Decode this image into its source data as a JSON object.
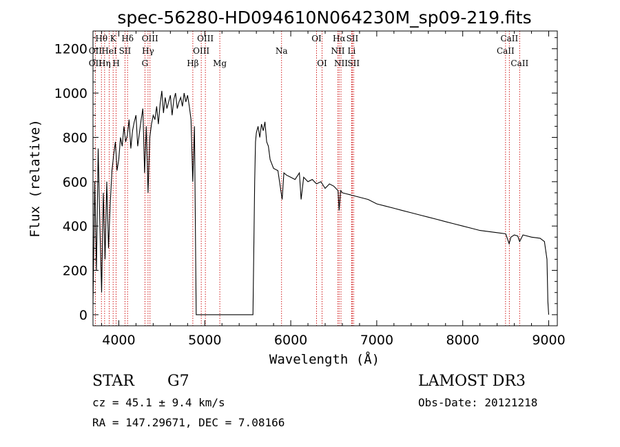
{
  "chart_data": {
    "type": "line",
    "title": "spec-56280-HD094610N064230M_sp09-219.fits",
    "xlabel": "Wavelength (Å)",
    "ylabel": "Flux (relative)",
    "xlim": [
      3700,
      9100
    ],
    "ylim": [
      -50,
      1280
    ],
    "x_ticks": [
      4000,
      5000,
      6000,
      7000,
      8000,
      9000
    ],
    "y_ticks": [
      0,
      200,
      400,
      600,
      800,
      1000,
      1200
    ],
    "series": [
      {
        "name": "flux",
        "x": [
          3700,
          3720,
          3740,
          3760,
          3780,
          3800,
          3820,
          3840,
          3860,
          3880,
          3900,
          3920,
          3940,
          3960,
          3980,
          4000,
          4020,
          4040,
          4060,
          4080,
          4100,
          4120,
          4140,
          4160,
          4180,
          4200,
          4220,
          4240,
          4260,
          4280,
          4300,
          4320,
          4340,
          4360,
          4380,
          4400,
          4420,
          4440,
          4460,
          4480,
          4500,
          4520,
          4540,
          4560,
          4580,
          4600,
          4620,
          4640,
          4660,
          4680,
          4700,
          4720,
          4740,
          4760,
          4780,
          4800,
          4820,
          4840,
          4860,
          4880,
          4900,
          4920,
          5000,
          5200,
          5400,
          5560,
          5580,
          5590,
          5600,
          5620,
          5640,
          5660,
          5680,
          5700,
          5720,
          5740,
          5760,
          5780,
          5800,
          5850,
          5900,
          5920,
          5950,
          6000,
          6050,
          6100,
          6120,
          6150,
          6200,
          6250,
          6300,
          6350,
          6400,
          6450,
          6500,
          6550,
          6563,
          6580,
          6600,
          6650,
          6700,
          6800,
          6900,
          7000,
          7100,
          7200,
          7300,
          7400,
          7500,
          7600,
          7700,
          7800,
          7900,
          8000,
          8100,
          8200,
          8300,
          8400,
          8500,
          8540,
          8560,
          8600,
          8640,
          8662,
          8700,
          8800,
          8900,
          8950,
          8980,
          8990,
          9000
        ],
        "y": [
          50,
          600,
          200,
          750,
          400,
          100,
          550,
          250,
          600,
          300,
          500,
          650,
          720,
          780,
          650,
          700,
          800,
          760,
          850,
          780,
          810,
          880,
          750,
          830,
          870,
          900,
          760,
          820,
          880,
          930,
          640,
          850,
          550,
          800,
          860,
          900,
          880,
          940,
          860,
          950,
          1010,
          910,
          980,
          930,
          960,
          990,
          900,
          970,
          1000,
          930,
          960,
          980,
          940,
          1000,
          960,
          990,
          940,
          880,
          600,
          850,
          0,
          0,
          0,
          0,
          0,
          0,
          600,
          780,
          820,
          850,
          800,
          860,
          830,
          870,
          780,
          760,
          700,
          680,
          660,
          650,
          520,
          640,
          630,
          620,
          610,
          640,
          520,
          620,
          600,
          610,
          590,
          600,
          570,
          590,
          580,
          560,
          470,
          560,
          550,
          545,
          540,
          530,
          520,
          500,
          490,
          480,
          470,
          460,
          450,
          440,
          430,
          420,
          410,
          400,
          390,
          380,
          375,
          370,
          365,
          320,
          350,
          360,
          355,
          330,
          360,
          350,
          345,
          330,
          250,
          60,
          0
        ]
      }
    ],
    "spectral_lines": {
      "top_row": [
        {
          "x": 3798,
          "label": "Hθ"
        },
        {
          "x": 3934,
          "label": "K"
        },
        {
          "x": 4102,
          "label": "Hδ"
        },
        {
          "x": 4363,
          "label": "OIII"
        },
        {
          "x": 5007,
          "label": "OIII"
        },
        {
          "x": 6300,
          "label": "OI"
        },
        {
          "x": 6563,
          "label": "Hα"
        },
        {
          "x": 6716,
          "label": "SII"
        },
        {
          "x": 8542,
          "label": "CaII"
        }
      ],
      "middle_row": [
        {
          "x": 3727,
          "label": "OII"
        },
        {
          "x": 3889,
          "label": "HeI"
        },
        {
          "x": 4072,
          "label": "SII"
        },
        {
          "x": 4340,
          "label": "Hγ"
        },
        {
          "x": 4959,
          "label": "OIII"
        },
        {
          "x": 5893,
          "label": "Na"
        },
        {
          "x": 6548,
          "label": "NII"
        },
        {
          "x": 6708,
          "label": "Li"
        },
        {
          "x": 8498,
          "label": "CaII"
        }
      ],
      "bottom_row": [
        {
          "x": 3727,
          "label": "OII"
        },
        {
          "x": 3835,
          "label": "Hη"
        },
        {
          "x": 3969,
          "label": "H"
        },
        {
          "x": 4304,
          "label": "G"
        },
        {
          "x": 4861,
          "label": "Hβ"
        },
        {
          "x": 5175,
          "label": "Mg"
        },
        {
          "x": 6364,
          "label": "OI"
        },
        {
          "x": 6584,
          "label": "NII"
        },
        {
          "x": 6731,
          "label": "SII"
        },
        {
          "x": 8662,
          "label": "CaII"
        }
      ]
    }
  },
  "info": {
    "class": "STAR",
    "subclass": "G7",
    "cz": "cz = 45.1 ± 9.4 km/s",
    "radec": "RA = 147.29671, DEC =   7.08166",
    "survey": "LAMOST DR3",
    "obs_date": "Obs-Date: 20121218"
  },
  "colors": {
    "line_marker": "#cc0000",
    "spectrum": "#000000"
  }
}
